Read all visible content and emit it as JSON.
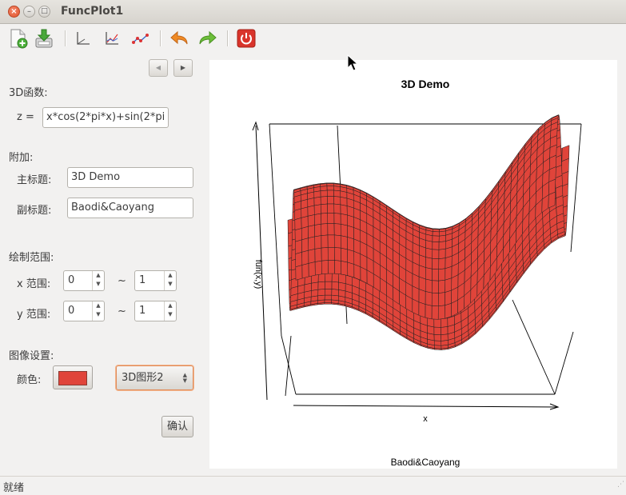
{
  "window": {
    "title": "FuncPlot1"
  },
  "nav": {
    "prev": "◀",
    "next": "▶"
  },
  "function": {
    "section_label": "3D函数:",
    "z_label": "z =",
    "expression": "x*cos(2*pi*x)+sin(2*pi"
  },
  "extra": {
    "section_label": "附加:",
    "main_title_label": "主标题:",
    "main_title_value": "3D Demo",
    "sub_title_label": "副标题:",
    "sub_title_value": "Baodi&Caoyang"
  },
  "range": {
    "section_label": "绘制范围:",
    "x_label": "x 范围:",
    "x_min": "0",
    "x_max": "1",
    "y_label": "y 范围:",
    "y_min": "0",
    "y_max": "1",
    "tilde": "~"
  },
  "image": {
    "section_label": "图像设置:",
    "color_label": "颜色:",
    "color_value": "#e0443a",
    "type_value": "3D图形2",
    "confirm_label": "确认"
  },
  "plot": {
    "title": "3D Demo",
    "xlabel": "x",
    "zlabel": "fun(x,y)",
    "subtitle": "Baodi&Caoyang",
    "surface_color": "#e0443a"
  },
  "status": {
    "text": "就绪"
  },
  "toolbar": {
    "icons": [
      "new-file-icon",
      "save-icon",
      "axes-icon",
      "line-chart-icon",
      "scatter-chart-icon",
      "undo-icon",
      "redo-icon",
      "power-icon"
    ]
  }
}
